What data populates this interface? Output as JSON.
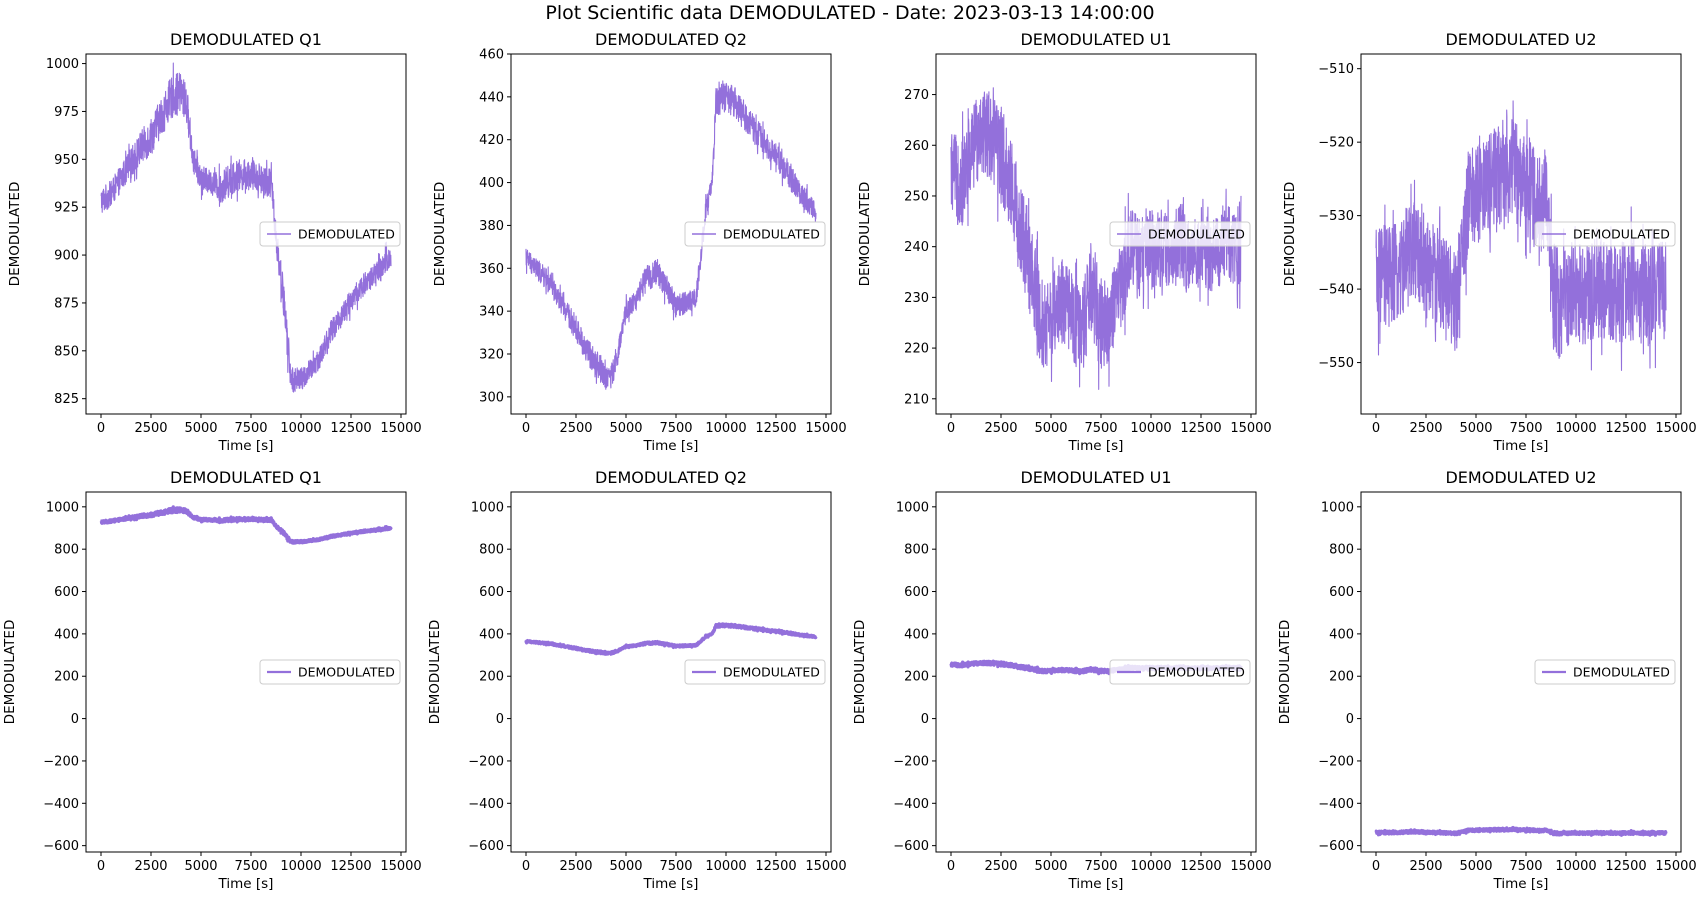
{
  "figure": {
    "suptitle": "Plot Scientific data DEMODULATED - Date: 2023-03-13 14:00:00",
    "line_color": "#9370DB"
  },
  "chart_data": [
    {
      "type": "line",
      "title": "DEMODULATED Q1",
      "xlabel": "Time [s]",
      "ylabel": "DEMODULATED",
      "legend": "DEMODULATED",
      "legend_loc": "center right",
      "xlim": [
        -750,
        15250
      ],
      "ylim": [
        817,
        1005
      ],
      "xticks": [
        0,
        2500,
        5000,
        7500,
        10000,
        12500,
        15000
      ],
      "yticks": [
        825,
        850,
        875,
        900,
        925,
        950,
        975,
        1000
      ],
      "x": [
        0,
        500,
        1000,
        1500,
        2000,
        2500,
        3000,
        3500,
        4000,
        4300,
        4600,
        5000,
        5500,
        6000,
        6500,
        7000,
        7500,
        8000,
        8500,
        8800,
        9100,
        9300,
        9500,
        10000,
        10500,
        11000,
        11500,
        12000,
        12500,
        13000,
        13500,
        14000,
        14500
      ],
      "y": [
        928,
        932,
        940,
        948,
        956,
        962,
        972,
        982,
        985,
        978,
        950,
        940,
        938,
        935,
        940,
        942,
        942,
        940,
        938,
        905,
        880,
        858,
        835,
        835,
        840,
        848,
        860,
        868,
        876,
        883,
        888,
        892,
        900
      ],
      "amp": [
        7,
        7,
        7,
        8,
        9,
        10,
        10,
        11,
        11,
        10,
        7,
        7,
        6,
        8,
        9,
        8,
        8,
        8,
        8,
        8,
        9,
        10,
        7,
        6,
        6,
        6,
        6,
        6,
        6,
        6,
        6,
        7,
        7
      ]
    },
    {
      "type": "line",
      "title": "DEMODULATED Q2",
      "xlabel": "Time [s]",
      "ylabel": "DEMODULATED",
      "legend": "DEMODULATED",
      "legend_loc": "center right",
      "xlim": [
        -750,
        15250
      ],
      "ylim": [
        292,
        460
      ],
      "xticks": [
        0,
        2500,
        5000,
        7500,
        10000,
        12500,
        15000
      ],
      "yticks": [
        300,
        320,
        340,
        360,
        380,
        400,
        420,
        440,
        460
      ],
      "x": [
        0,
        500,
        1000,
        1500,
        2000,
        2500,
        3000,
        3500,
        4000,
        4300,
        4600,
        5000,
        5500,
        6000,
        6500,
        7000,
        7500,
        8000,
        8500,
        8700,
        9000,
        9300,
        9500,
        10000,
        10500,
        11000,
        11500,
        12000,
        12500,
        13000,
        13500,
        14000,
        14500
      ],
      "y": [
        365,
        360,
        355,
        348,
        340,
        332,
        322,
        316,
        310,
        310,
        320,
        340,
        345,
        355,
        358,
        352,
        342,
        344,
        346,
        362,
        388,
        398,
        438,
        440,
        437,
        430,
        424,
        418,
        412,
        406,
        398,
        392,
        386
      ],
      "amp": [
        5,
        5,
        5,
        5,
        5,
        6,
        6,
        6,
        7,
        6,
        5,
        5,
        5,
        6,
        6,
        6,
        6,
        5,
        5,
        5,
        5,
        5,
        7,
        7,
        7,
        7,
        6,
        6,
        6,
        6,
        6,
        5,
        5
      ]
    },
    {
      "type": "line",
      "title": "DEMODULATED U1",
      "xlabel": "Time [s]",
      "ylabel": "DEMODULATED",
      "legend": "DEMODULATED",
      "legend_loc": "center right",
      "xlim": [
        -750,
        15250
      ],
      "ylim": [
        207,
        278
      ],
      "xticks": [
        0,
        2500,
        5000,
        7500,
        10000,
        12500,
        15000
      ],
      "yticks": [
        210,
        220,
        230,
        240,
        250,
        260,
        270
      ],
      "x": [
        0,
        500,
        1000,
        1500,
        2000,
        2500,
        3000,
        3500,
        4000,
        4300,
        4600,
        5000,
        5500,
        6000,
        6500,
        7000,
        7500,
        8000,
        8500,
        9000,
        9500,
        10000,
        10500,
        11000,
        11500,
        12000,
        12500,
        13000,
        13500,
        14000,
        14500
      ],
      "y": [
        255,
        252,
        258,
        264,
        262,
        258,
        252,
        243,
        235,
        228,
        224,
        226,
        230,
        227,
        222,
        232,
        225,
        226,
        232,
        240,
        238,
        240,
        240,
        238,
        241,
        237,
        240,
        238,
        240,
        241,
        240
      ],
      "amp": [
        8,
        9,
        9,
        9,
        9,
        10,
        10,
        10,
        10,
        10,
        9,
        8,
        8,
        8,
        9,
        9,
        10,
        8,
        8,
        8,
        8,
        8,
        8,
        7,
        8,
        7,
        8,
        7,
        8,
        8,
        8
      ]
    },
    {
      "type": "line",
      "title": "DEMODULATED U2",
      "xlabel": "Time [s]",
      "ylabel": "DEMODULATED",
      "legend": "DEMODULATED",
      "legend_loc": "center right",
      "xlim": [
        -750,
        15250
      ],
      "ylim": [
        -557,
        -508
      ],
      "xticks": [
        0,
        2500,
        5000,
        7500,
        10000,
        12500,
        15000
      ],
      "yticks": [
        -550,
        -540,
        -530,
        -520,
        -510
      ],
      "x": [
        0,
        500,
        1000,
        1500,
        2000,
        2500,
        3000,
        3500,
        4000,
        4300,
        4600,
        5000,
        5500,
        6000,
        6500,
        7000,
        7500,
        8000,
        8500,
        8800,
        9100,
        9500,
        10000,
        10500,
        11000,
        11500,
        12000,
        12500,
        13000,
        13500,
        14000,
        14500
      ],
      "y": [
        -539,
        -538,
        -538,
        -536,
        -535,
        -537,
        -538,
        -540,
        -542,
        -535,
        -528,
        -527,
        -526,
        -525,
        -523,
        -524,
        -526,
        -528,
        -528,
        -540,
        -542,
        -541,
        -540,
        -541,
        -540,
        -540,
        -541,
        -540,
        -540,
        -541,
        -540,
        -540
      ],
      "amp": [
        7,
        7,
        7,
        7,
        7,
        7,
        7,
        7,
        7,
        7,
        7,
        7,
        7,
        7,
        8,
        7,
        7,
        7,
        7,
        8,
        8,
        7,
        7,
        7,
        7,
        7,
        7,
        7,
        7,
        7,
        7,
        7
      ]
    },
    {
      "type": "line",
      "title": "DEMODULATED Q1",
      "xlabel": "Time [s]",
      "ylabel": "DEMODULATED",
      "legend": "DEMODULATED",
      "legend_loc": "center right",
      "xlim": [
        -750,
        15250
      ],
      "ylim": [
        -630,
        1070
      ],
      "xticks": [
        0,
        2500,
        5000,
        7500,
        10000,
        12500,
        15000
      ],
      "yticks": [
        -600,
        -400,
        -200,
        0,
        200,
        400,
        600,
        800,
        1000
      ],
      "series_ref": 0
    },
    {
      "type": "line",
      "title": "DEMODULATED Q2",
      "xlabel": "Time [s]",
      "ylabel": "DEMODULATED",
      "legend": "DEMODULATED",
      "legend_loc": "center right",
      "xlim": [
        -750,
        15250
      ],
      "ylim": [
        -630,
        1070
      ],
      "xticks": [
        0,
        2500,
        5000,
        7500,
        10000,
        12500,
        15000
      ],
      "yticks": [
        -600,
        -400,
        -200,
        0,
        200,
        400,
        600,
        800,
        1000
      ],
      "series_ref": 1
    },
    {
      "type": "line",
      "title": "DEMODULATED U1",
      "xlabel": "Time [s]",
      "ylabel": "DEMODULATED",
      "legend": "DEMODULATED",
      "legend_loc": "center right",
      "xlim": [
        -750,
        15250
      ],
      "ylim": [
        -630,
        1070
      ],
      "xticks": [
        0,
        2500,
        5000,
        7500,
        10000,
        12500,
        15000
      ],
      "yticks": [
        -600,
        -400,
        -200,
        0,
        200,
        400,
        600,
        800,
        1000
      ],
      "series_ref": 2
    },
    {
      "type": "line",
      "title": "DEMODULATED U2",
      "xlabel": "Time [s]",
      "ylabel": "DEMODULATED",
      "legend": "DEMODULATED",
      "legend_loc": "center right",
      "xlim": [
        -750,
        15250
      ],
      "ylim": [
        -630,
        1070
      ],
      "xticks": [
        0,
        2500,
        5000,
        7500,
        10000,
        12500,
        15000
      ],
      "yticks": [
        -600,
        -400,
        -200,
        0,
        200,
        400,
        600,
        800,
        1000
      ],
      "series_ref": 3
    }
  ]
}
